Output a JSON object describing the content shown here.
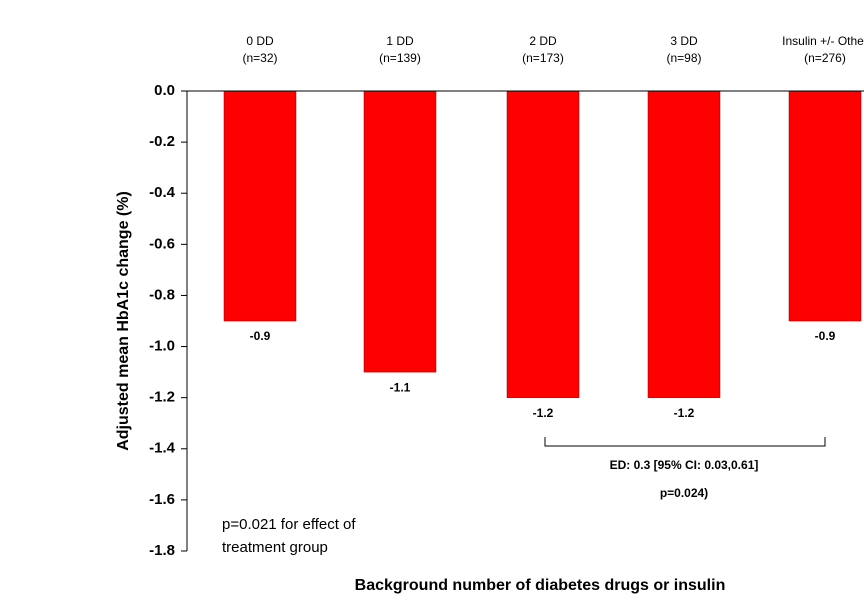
{
  "chart_data": {
    "type": "bar",
    "categories": [
      "0 DD",
      "1 DD",
      "2 DD",
      "3 DD",
      "Insulin +/- Other"
    ],
    "category_notes": [
      "(n=32)",
      "(n=139)",
      "(n=173)",
      "(n=98)",
      "(n=276)"
    ],
    "values": [
      -0.9,
      -1.1,
      -1.2,
      -1.2,
      -0.9
    ],
    "color": "#ff0000",
    "ylim": [
      -1.8,
      0
    ],
    "yticks": [
      {
        "value": 0,
        "label": "0.0"
      },
      -0.2,
      -0.4,
      -0.6,
      -0.8,
      {
        "value": -1,
        "label": "-1.0"
      },
      -1.2,
      -1.4,
      -1.6,
      -1.8
    ],
    "y_label": "Adjusted mean HbA1c change (%)",
    "x_label": "Background number of diabetes drugs or insulin",
    "annotations": [
      "p=0.021 for effect of",
      "treatment group",
      "ED: 0.3 [95% CI: 0.03,0.61]",
      "p=0.024)"
    ],
    "grid": false
  }
}
